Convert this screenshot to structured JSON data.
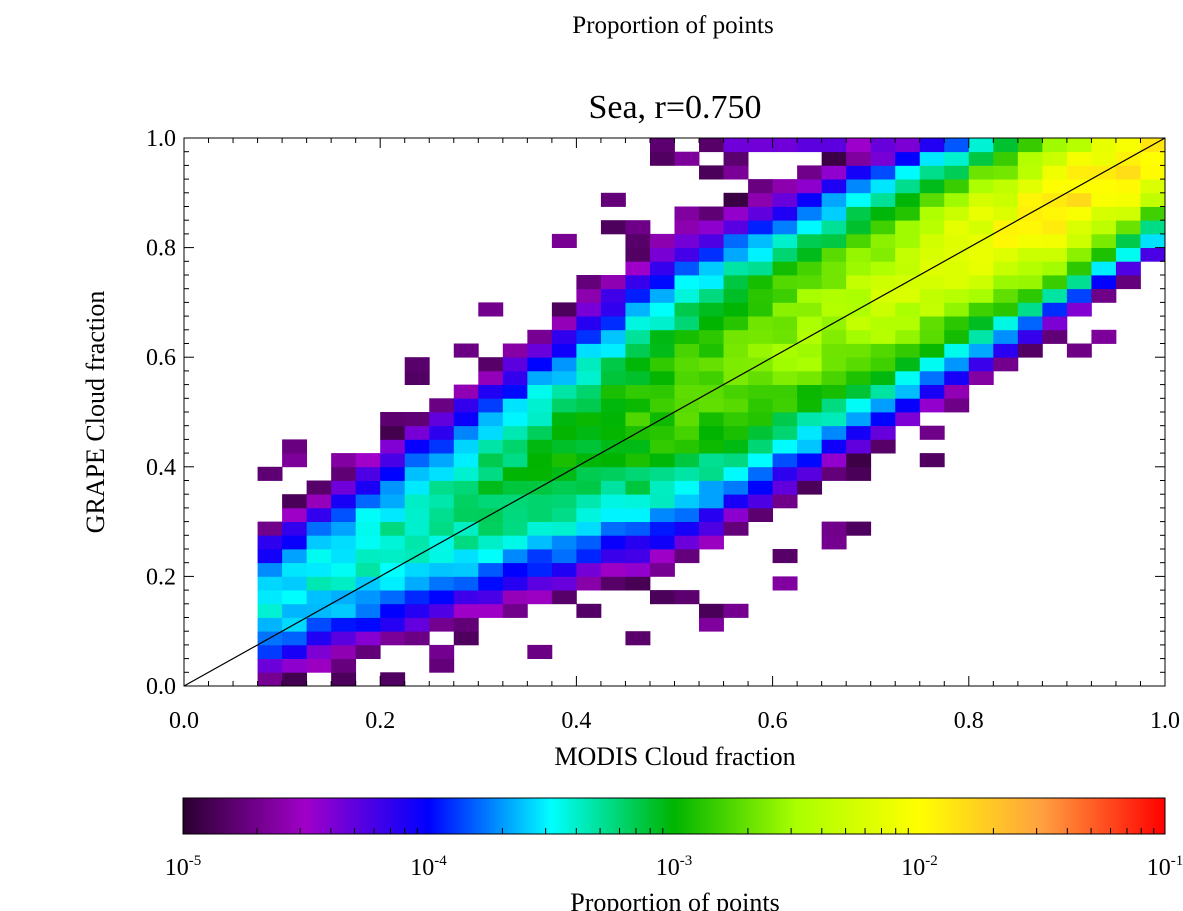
{
  "top_caption": "Proportion of points",
  "chart_data": {
    "type": "heatmap",
    "title": "Sea, r=0.750",
    "xlabel": "MODIS Cloud fraction",
    "ylabel": "GRAPE Cloud fraction",
    "xlim": [
      0,
      1
    ],
    "ylim": [
      0,
      1
    ],
    "x_ticks": [
      "0.0",
      "0.2",
      "0.4",
      "0.6",
      "0.8",
      "1.0"
    ],
    "y_ticks": [
      "0.0",
      "0.2",
      "0.4",
      "0.6",
      "0.8",
      "1.0"
    ],
    "bin_width": 0.025,
    "one_to_one_line": true,
    "colorbar": {
      "label": "Proportion of points",
      "scale": "log",
      "range": [
        1e-05,
        0.1
      ],
      "ticks": [
        {
          "base": "10",
          "exp": "-5"
        },
        {
          "base": "10",
          "exp": "-4"
        },
        {
          "base": "10",
          "exp": "-3"
        },
        {
          "base": "10",
          "exp": "-2"
        },
        {
          "base": "10",
          "exp": "-1"
        }
      ],
      "colors": [
        "#2b0030",
        "#a000c8",
        "#0000ff",
        "#00ffff",
        "#00b400",
        "#aaff00",
        "#ffff00",
        "#ffa040",
        "#ff0000"
      ]
    },
    "description": "2D histogram of GRAPE vs MODIS cloud fraction over sea; densest (~1e-2) near x 0.8-0.9, y 0.75-0.85; ridge along the 1:1 line"
  }
}
